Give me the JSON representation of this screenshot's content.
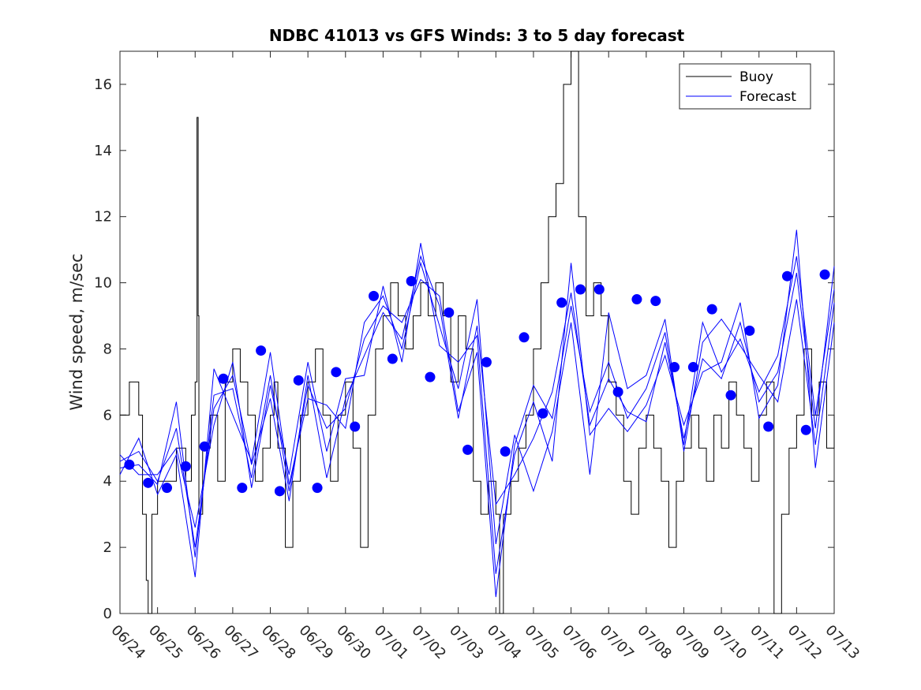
{
  "chart_data": {
    "type": "line",
    "title": "NDBC 41013 vs GFS Winds: 3 to 5 day forecast",
    "xlabel": "",
    "ylabel": "Wind speed, m/sec",
    "xlim": [
      "06/24",
      "07/13"
    ],
    "ylim": [
      0,
      17
    ],
    "y_ticks": [
      0,
      2,
      4,
      6,
      8,
      10,
      12,
      14,
      16
    ],
    "x_tick_labels": [
      "06/24",
      "06/25",
      "06/26",
      "06/27",
      "06/28",
      "06/29",
      "06/30",
      "07/01",
      "07/02",
      "07/03",
      "07/04",
      "07/05",
      "07/06",
      "07/07",
      "07/08",
      "07/09",
      "07/10",
      "07/11",
      "07/12",
      "07/13"
    ],
    "grid": false,
    "legend": {
      "position": "top-right",
      "entries": [
        "Buoy",
        "Forecast"
      ]
    },
    "colors": {
      "buoy": "#000000",
      "forecast": "#0000ff",
      "markers": "#0000ff"
    },
    "series": [
      {
        "name": "Buoy",
        "color": "#000000",
        "x_days": [
          0.0,
          0.25,
          0.5,
          0.6,
          0.7,
          0.75,
          0.85,
          1.0,
          1.25,
          1.5,
          1.75,
          1.9,
          2.0,
          2.05,
          2.08,
          2.1,
          2.2,
          2.4,
          2.6,
          2.8,
          3.0,
          3.2,
          3.4,
          3.6,
          3.8,
          4.0,
          4.1,
          4.2,
          4.4,
          4.6,
          4.8,
          5.0,
          5.2,
          5.4,
          5.6,
          5.8,
          6.0,
          6.2,
          6.4,
          6.6,
          6.8,
          7.0,
          7.2,
          7.4,
          7.6,
          7.8,
          8.0,
          8.2,
          8.4,
          8.6,
          8.8,
          9.0,
          9.2,
          9.4,
          9.6,
          9.8,
          10.0,
          10.1,
          10.2,
          10.4,
          10.6,
          10.8,
          11.0,
          11.2,
          11.4,
          11.6,
          11.8,
          12.0,
          12.2,
          12.4,
          12.6,
          12.8,
          13.0,
          13.2,
          13.4,
          13.6,
          13.8,
          14.0,
          14.2,
          14.4,
          14.6,
          14.8,
          15.0,
          15.2,
          15.4,
          15.6,
          15.8,
          16.0,
          16.2,
          16.4,
          16.6,
          16.8,
          17.0,
          17.2,
          17.4,
          17.6,
          17.8,
          18.0,
          18.2,
          18.4,
          18.6,
          18.8,
          19.0
        ],
        "values": [
          6,
          7,
          6,
          3,
          1,
          0,
          3,
          4,
          4,
          5,
          4,
          6,
          7,
          15,
          9,
          3,
          5,
          6,
          4,
          7,
          8,
          7,
          6,
          4,
          5,
          6,
          7,
          5,
          2,
          4,
          6,
          7,
          8,
          6,
          4,
          6,
          7,
          5,
          2,
          6,
          8,
          9,
          10,
          9,
          8,
          9,
          10,
          9,
          10,
          9,
          7,
          9,
          8,
          4,
          3,
          4,
          3,
          0,
          3,
          4,
          5,
          6,
          8,
          10,
          12,
          13,
          16,
          17,
          12,
          9,
          10,
          9,
          7,
          6,
          4,
          3,
          5,
          6,
          5,
          4,
          2,
          4,
          5,
          6,
          5,
          4,
          6,
          5,
          7,
          6,
          5,
          4,
          6,
          7,
          0,
          3,
          5,
          6,
          8,
          6,
          7,
          5,
          6
        ]
      },
      {
        "name": "Forecast",
        "color": "#0000ff",
        "x_days": [
          0.0,
          0.5,
          1.0,
          1.5,
          2.0,
          2.5,
          3.0,
          3.5,
          4.0,
          4.5,
          5.0,
          5.5,
          6.0,
          6.5,
          7.0,
          7.5,
          8.0,
          8.5,
          9.0,
          9.5,
          10.0,
          10.5,
          11.0,
          11.5,
          12.0,
          12.5,
          13.0,
          13.5,
          14.0,
          14.5,
          15.0,
          15.5,
          16.0,
          16.5,
          17.0,
          17.5,
          18.0,
          18.5,
          19.0
        ],
        "runs": [
          [
            4.6,
            4.9,
            4.0,
            5.6,
            2.0,
            6.2,
            7.2,
            4.5,
            6.5,
            3.4,
            7.2,
            4.1,
            6.5,
            7.8,
            9.1,
            8.3,
            10.8,
            9.3,
            5.9,
            8.7,
            3.3,
            4.2,
            5.3,
            6.7,
            9.7,
            5.7,
            7.1,
            6.1,
            5.8,
            8.2,
            5.3,
            7.7,
            7.1,
            8.8,
            6.4,
            7.3,
            10.3,
            5.6,
            10.5
          ],
          [
            4.2,
            5.3,
            3.6,
            4.8,
            1.1,
            7.4,
            6.0,
            4.6,
            7.9,
            3.9,
            6.5,
            6.3,
            5.6,
            8.8,
            9.6,
            8.0,
            10.6,
            8.7,
            6.8,
            9.5,
            2.1,
            5.4,
            3.7,
            5.5,
            8.8,
            4.2,
            9.1,
            6.8,
            7.2,
            8.9,
            4.9,
            8.2,
            8.9,
            8.1,
            7.2,
            6.4,
            9.5,
            5.1,
            9.4
          ],
          [
            4.8,
            4.2,
            4.2,
            5.0,
            2.6,
            5.7,
            7.6,
            3.8,
            6.9,
            4.2,
            7.6,
            4.9,
            7.1,
            7.2,
            9.9,
            7.6,
            11.2,
            8.1,
            7.6,
            8.4,
            1.2,
            4.8,
            6.4,
            4.6,
            10.6,
            5.4,
            6.2,
            5.5,
            6.3,
            7.8,
            5.7,
            7.3,
            7.6,
            9.4,
            5.9,
            6.9,
            11.6,
            4.4,
            8.8
          ],
          [
            4.4,
            4.5,
            3.9,
            6.4,
            1.7,
            6.6,
            6.8,
            4.1,
            7.2,
            3.7,
            6.9,
            5.6,
            6.2,
            8.3,
            9.3,
            8.8,
            10.1,
            9.6,
            6.1,
            7.9,
            0.5,
            5.1,
            6.9,
            5.9,
            9.3,
            6.1,
            7.6,
            5.9,
            6.8,
            8.5,
            5.1,
            8.8,
            7.3,
            8.3,
            6.7,
            7.8,
            10.8,
            6.0,
            9.8
          ]
        ]
      }
    ],
    "markers": {
      "color": "#0000ff",
      "x_days": [
        0.25,
        0.75,
        1.25,
        1.75,
        2.25,
        2.75,
        3.25,
        3.75,
        4.25,
        4.75,
        5.25,
        5.75,
        6.25,
        6.75,
        7.25,
        7.75,
        8.25,
        8.75,
        9.25,
        9.75,
        10.25,
        10.75,
        11.25,
        11.75,
        12.25,
        12.75,
        13.25,
        13.75,
        14.25,
        14.75,
        15.25,
        15.75,
        16.25,
        16.75,
        17.25,
        17.75,
        18.25,
        18.75
      ],
      "values": [
        4.5,
        3.95,
        3.8,
        4.45,
        5.05,
        7.1,
        3.8,
        7.95,
        3.7,
        7.05,
        3.8,
        7.3,
        5.65,
        9.6,
        7.7,
        10.05,
        7.15,
        9.1,
        4.95,
        7.6,
        4.9,
        8.35,
        6.05,
        9.4,
        9.8,
        9.8,
        6.7,
        9.5,
        9.45,
        7.45,
        7.45,
        9.2,
        6.6,
        8.55,
        5.65,
        10.2,
        5.55,
        10.25
      ]
    }
  }
}
